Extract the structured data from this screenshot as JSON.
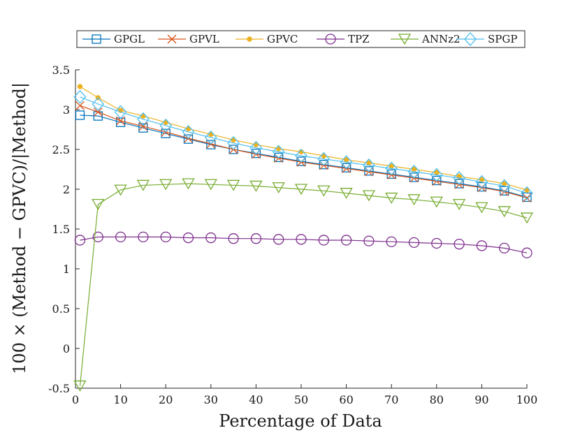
{
  "chart_data": {
    "type": "line",
    "title": "",
    "xlabel": "Percentage of Data",
    "ylabel": "100 × (Method − GPVC)/|Method|",
    "xlim": [
      0,
      100
    ],
    "ylim": [
      -0.5,
      3.5
    ],
    "xticks": [
      0,
      10,
      20,
      30,
      40,
      50,
      60,
      70,
      80,
      90,
      100
    ],
    "xtick_labels": [
      "0",
      "10",
      "20",
      "30",
      "40",
      "50",
      "60",
      "70",
      "80",
      "90",
      "100"
    ],
    "yticks": [
      -0.5,
      0,
      0.5,
      1,
      1.5,
      2,
      2.5,
      3,
      3.5
    ],
    "ytick_labels": [
      "-0.5",
      "0",
      "0.5",
      "1",
      "1.5",
      "2",
      "2.5",
      "3",
      "3.5"
    ],
    "grid": false,
    "legend_position": "top",
    "x": [
      1,
      5,
      10,
      15,
      20,
      25,
      30,
      35,
      40,
      45,
      50,
      55,
      60,
      65,
      70,
      75,
      80,
      85,
      90,
      95,
      100
    ],
    "series": [
      {
        "name": "GPGL",
        "color": "#0072BD",
        "marker": "square",
        "values": [
          2.93,
          2.92,
          2.84,
          2.77,
          2.7,
          2.63,
          2.56,
          2.5,
          2.45,
          2.4,
          2.35,
          2.31,
          2.27,
          2.23,
          2.19,
          2.15,
          2.11,
          2.07,
          2.03,
          1.98,
          1.9
        ]
      },
      {
        "name": "GPVL",
        "color": "#D95319",
        "marker": "x",
        "values": [
          3.05,
          2.97,
          2.86,
          2.79,
          2.72,
          2.64,
          2.57,
          2.5,
          2.44,
          2.39,
          2.34,
          2.3,
          2.26,
          2.22,
          2.18,
          2.14,
          2.1,
          2.06,
          2.02,
          1.97,
          1.89
        ]
      },
      {
        "name": "GPVC",
        "color": "#EDB120",
        "marker": "dot",
        "values": [
          3.29,
          3.15,
          2.99,
          2.92,
          2.84,
          2.76,
          2.69,
          2.62,
          2.56,
          2.51,
          2.47,
          2.42,
          2.37,
          2.33,
          2.29,
          2.25,
          2.21,
          2.16,
          2.12,
          2.07,
          1.99
        ]
      },
      {
        "name": "TPZ",
        "color": "#7E2F8E",
        "marker": "circle",
        "values": [
          1.36,
          1.4,
          1.4,
          1.4,
          1.4,
          1.39,
          1.39,
          1.38,
          1.38,
          1.37,
          1.37,
          1.36,
          1.36,
          1.35,
          1.34,
          1.33,
          1.32,
          1.31,
          1.29,
          1.26,
          1.2
        ]
      },
      {
        "name": "ANNz2",
        "color": "#77AC30",
        "marker": "triangle-down",
        "values": [
          -0.47,
          1.81,
          1.99,
          2.05,
          2.06,
          2.07,
          2.06,
          2.05,
          2.04,
          2.02,
          2.0,
          1.98,
          1.95,
          1.92,
          1.89,
          1.87,
          1.84,
          1.81,
          1.77,
          1.72,
          1.64
        ]
      },
      {
        "name": "SPGP",
        "color": "#4DBEEE",
        "marker": "diamond",
        "values": [
          3.16,
          3.07,
          2.97,
          2.88,
          2.8,
          2.72,
          2.65,
          2.58,
          2.52,
          2.47,
          2.42,
          2.38,
          2.34,
          2.3,
          2.26,
          2.22,
          2.18,
          2.14,
          2.09,
          2.04,
          1.95
        ]
      }
    ]
  }
}
